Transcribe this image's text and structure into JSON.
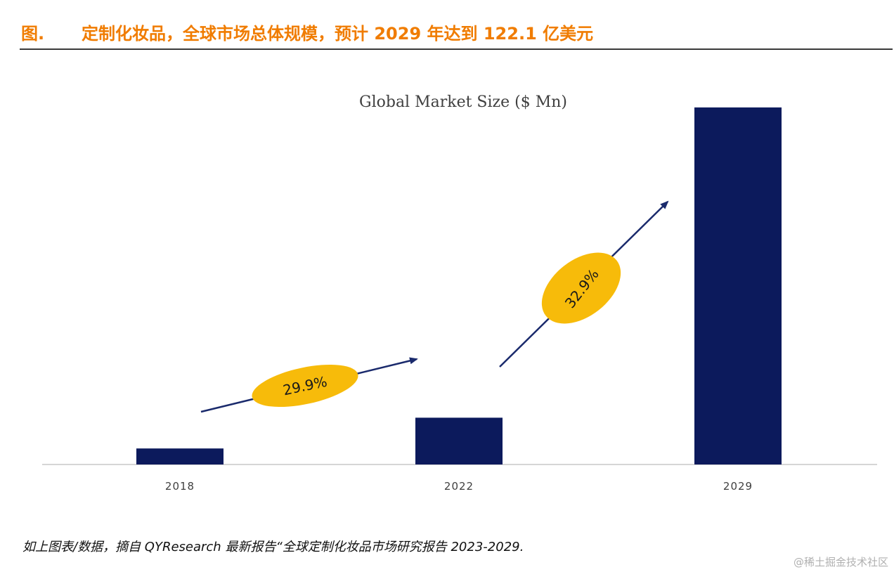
{
  "header": {
    "fig_label": "图.",
    "title": "定制化妆品，全球市场总体规模，预计 2029 年达到 122.1 亿美元"
  },
  "chart_data": {
    "type": "bar",
    "title": "Global Market Size ($ Mn)",
    "xlabel": "",
    "ylabel": "",
    "categories": [
      "2018",
      "2022",
      "2029"
    ],
    "values": [
      548,
      1600,
      12210
    ],
    "ylim": [
      0,
      13000
    ],
    "grid": false,
    "legend": "none",
    "bar_color": "#0c1a5c",
    "annotations": [
      {
        "label": "29.9%",
        "from": "2018",
        "to": "2022",
        "color": "#f7bb0a"
      },
      {
        "label": "32.9%",
        "from": "2022",
        "to": "2029",
        "color": "#f7bb0a"
      }
    ]
  },
  "footer": {
    "source": "如上图表/数据，摘自 QYResearch 最新报告“全球定制化妆品市场研究报告 2023-2029.",
    "watermark": "@稀土掘金技术社区"
  },
  "colors": {
    "accent": "#f07c00",
    "bar": "#0c1a5c",
    "badge": "#f7bb0a",
    "arrow": "#1a2a6c"
  }
}
